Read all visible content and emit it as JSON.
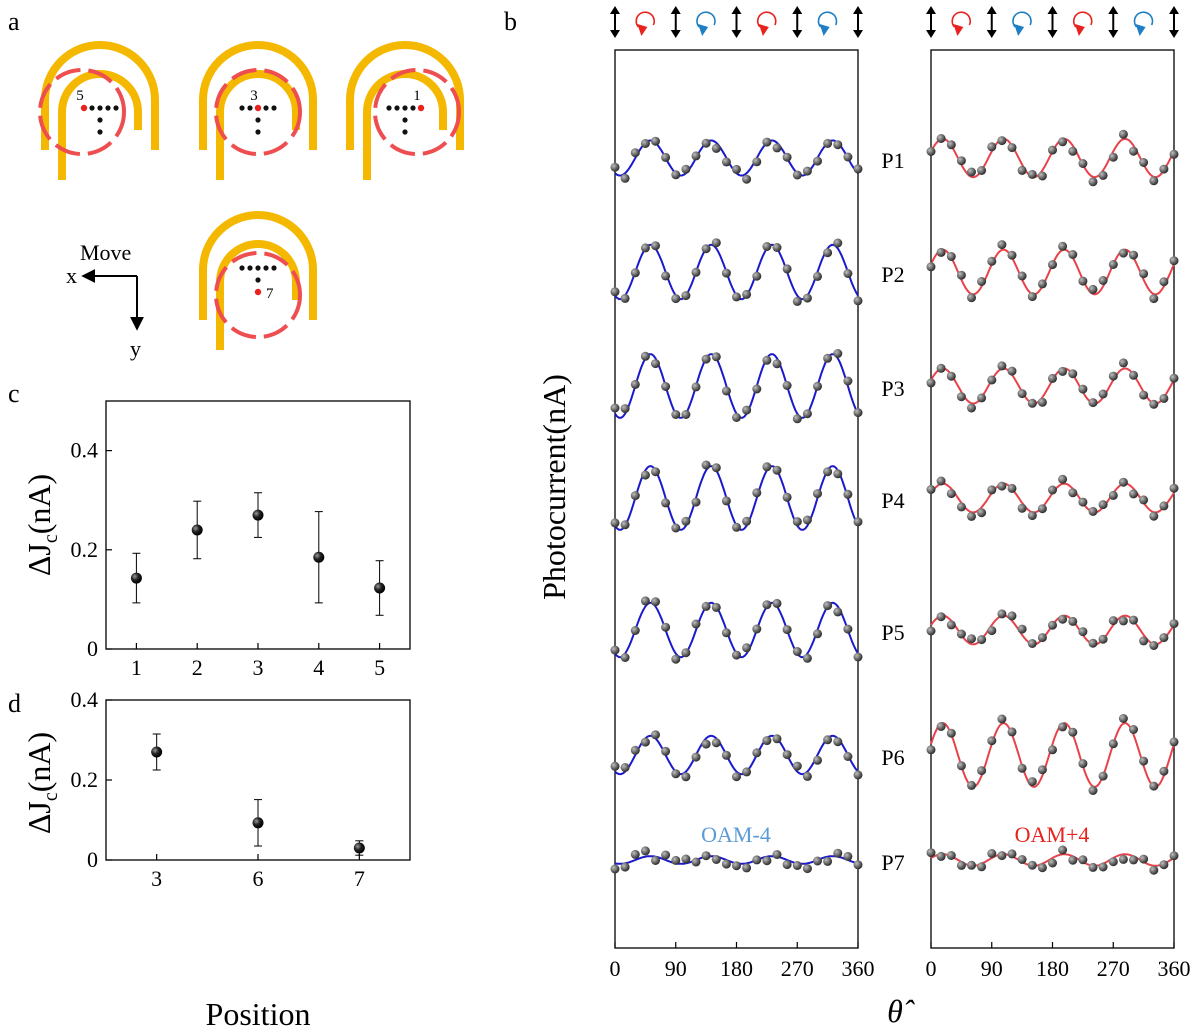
{
  "panel_labels": {
    "a": "a",
    "b": "b",
    "c": "c",
    "d": "d"
  },
  "panel_a": {
    "structures": [
      {
        "position": "5"
      },
      {
        "position": "3"
      },
      {
        "position": "1"
      },
      {
        "position": "7"
      }
    ],
    "axes": {
      "title": "Move",
      "x": "x",
      "y": "y"
    },
    "colors": {
      "ring": "#f5b800",
      "beam": "#ef4e50",
      "highlight": "#e8231f",
      "dot": "#111111"
    }
  },
  "chart_data": [
    {
      "id": "c",
      "type": "scatter",
      "ylabel_main": "ΔJ",
      "ylabel_sub": "c",
      "ylabel_unit": "(nA)",
      "x": [
        1,
        2,
        3,
        4,
        5
      ],
      "y": [
        0.143,
        0.24,
        0.27,
        0.185,
        0.123
      ],
      "yerr": [
        0.05,
        0.058,
        0.045,
        0.092,
        0.055
      ],
      "xticks": [
        "1",
        "2",
        "3",
        "4",
        "5"
      ],
      "yticks": [
        {
          "v": 0,
          "label": "0"
        },
        {
          "v": 0.2,
          "label": "0.2"
        },
        {
          "v": 0.4,
          "label": "0.4"
        }
      ],
      "xlim": [
        0.5,
        5.5
      ],
      "ylim": [
        0,
        0.5
      ]
    },
    {
      "id": "d",
      "type": "scatter",
      "ylabel_main": "ΔJ",
      "ylabel_sub": "c",
      "ylabel_unit": "(nA)",
      "xlabel": "Position",
      "x": [
        3,
        6,
        7
      ],
      "y": [
        0.27,
        0.093,
        0.03
      ],
      "yerr": [
        0.045,
        0.058,
        0.018
      ],
      "xticks": [
        "3",
        "6",
        "7"
      ],
      "yticks": [
        {
          "v": 0,
          "label": "0"
        },
        {
          "v": 0.2,
          "label": "0.2"
        },
        {
          "v": 0.4,
          "label": "0.4"
        }
      ],
      "xlim": [
        -0.5,
        2.5
      ],
      "ylim": [
        0,
        0.4
      ]
    },
    {
      "id": "b",
      "type": "line",
      "ylabel": "Photocurrent(nA)",
      "xlabel": "θ̂",
      "xlim": [
        0,
        360
      ],
      "xticks": [
        "0",
        "90",
        "180",
        "270",
        "360"
      ],
      "rows": [
        "P1",
        "P2",
        "P3",
        "P4",
        "P5",
        "P6",
        "P7"
      ],
      "polarization_icons": [
        "linear",
        "circular-red",
        "linear",
        "circular-blue",
        "linear",
        "circular-red",
        "linear",
        "circular-blue",
        "linear"
      ],
      "series": [
        {
          "name": "OAM-4",
          "color": "#1a1acc",
          "label_color": "#5b9bd5",
          "amplitude": [
            0.55,
            0.85,
            1.0,
            1.0,
            0.85,
            0.6,
            0.12
          ],
          "period_deg": 90,
          "phase_deg": [
            30,
            30,
            30,
            30,
            30,
            30,
            30
          ]
        },
        {
          "name": "OAM+4",
          "color": "#e8424a",
          "label_color": "#e8231f",
          "amplitude": [
            0.6,
            0.7,
            0.55,
            0.45,
            0.45,
            1.0,
            0.18
          ],
          "period_deg": 90,
          "phase_deg": [
            -5,
            -5,
            -5,
            -5,
            -5,
            -5,
            -5
          ]
        }
      ]
    }
  ]
}
